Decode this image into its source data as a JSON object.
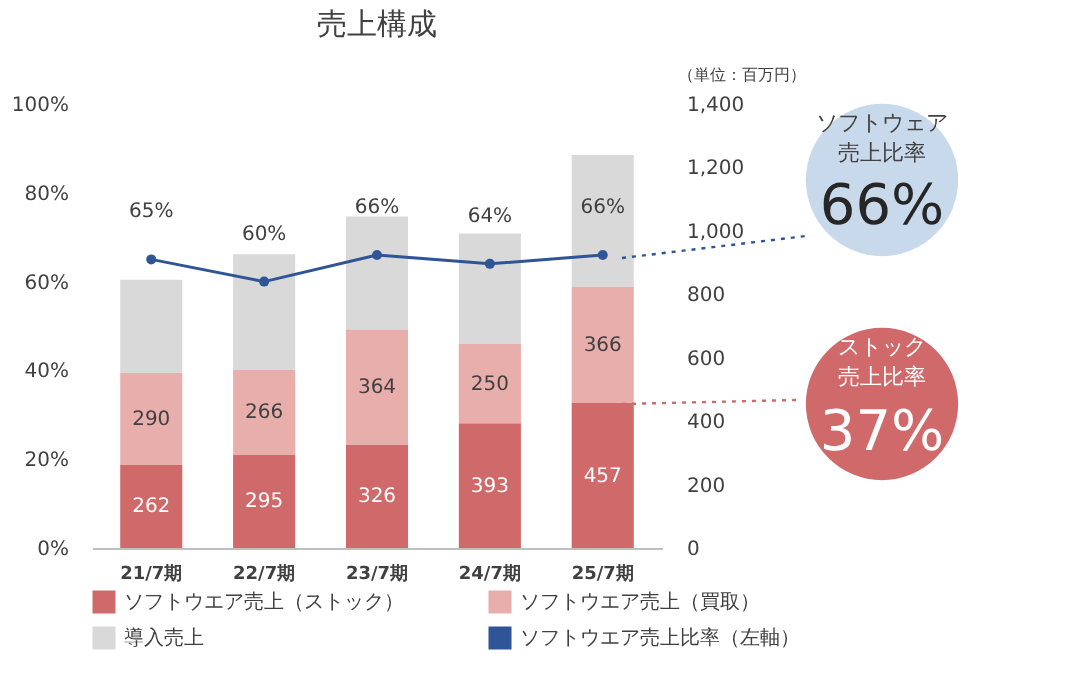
{
  "chart_data": {
    "type": "bar",
    "title": "売上構成",
    "stacked": true,
    "categories": [
      "21/7期",
      "22/7期",
      "23/7期",
      "24/7期",
      "25/7期"
    ],
    "series": [
      {
        "name": "ソフトウエア売上（ストック）",
        "axis": "y2",
        "color": "#d06a6a",
        "values": [
          262,
          295,
          326,
          393,
          457
        ],
        "value_labels": [
          "262",
          "295",
          "326",
          "393",
          "457"
        ]
      },
      {
        "name": "ソフトウエア売上（買取）",
        "axis": "y2",
        "color": "#e8aeac",
        "values": [
          290,
          266,
          364,
          250,
          366
        ],
        "value_labels": [
          "290",
          "266",
          "364",
          "250",
          "366"
        ]
      },
      {
        "name": "導入売上",
        "axis": "y2",
        "color": "#d9d9d9",
        "values": [
          294,
          365,
          355,
          349,
          416
        ]
      },
      {
        "name": "ソフトウエア売上比率（左軸）",
        "type": "line",
        "axis": "y",
        "color": "#2f5597",
        "marker": "circle",
        "values": [
          65,
          60,
          66,
          64,
          66
        ],
        "value_labels": [
          "65%",
          "60%",
          "66%",
          "64%",
          "66%"
        ]
      }
    ],
    "ylim": [
      0,
      100
    ],
    "yticks": [
      {
        "value": 0,
        "label": "0%"
      },
      {
        "value": 20,
        "label": "20%"
      },
      {
        "value": 40,
        "label": "40%"
      },
      {
        "value": 60,
        "label": "60%"
      },
      {
        "value": 80,
        "label": "80%"
      },
      {
        "value": 100,
        "label": "100%"
      }
    ],
    "y2lim": [
      0,
      1400
    ],
    "y2ticks": [
      0,
      200,
      400,
      600,
      800,
      {
        "value": 1000,
        "label": "1,000"
      },
      {
        "value": 1200,
        "label": "1,200"
      },
      {
        "value": 1400,
        "label": "1,400"
      }
    ],
    "grid": false,
    "legend": "bottom",
    "annotations": [
      "（単位：百万円）",
      "ソフトウェア",
      "売上比率",
      "66%",
      "ストック",
      "売上比率",
      "37%"
    ]
  }
}
